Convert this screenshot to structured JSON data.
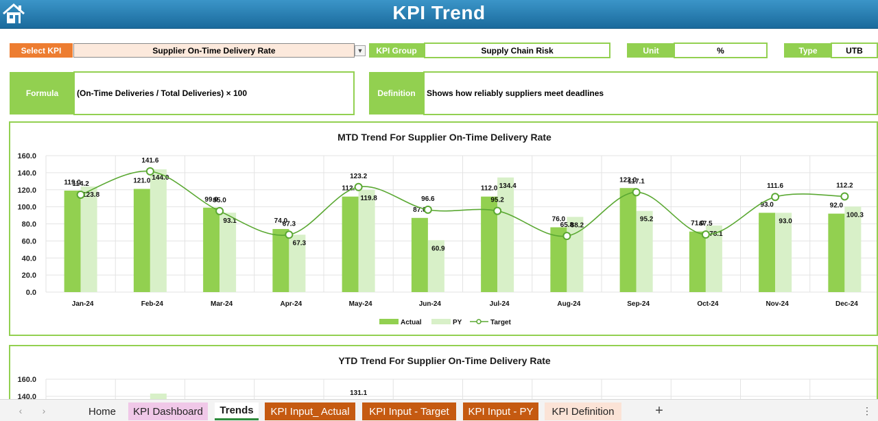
{
  "header": {
    "title": "KPI Trend",
    "home_icon": "home-icon"
  },
  "selector": {
    "select_label": "Select KPI",
    "select_value": "Supplier On-Time Delivery Rate",
    "group_label": "KPI Group",
    "group_value": "Supply Chain Risk",
    "unit_label": "Unit",
    "unit_value": "%",
    "type_label": "Type",
    "type_value": "UTB"
  },
  "info": {
    "formula_label": "Formula",
    "formula_value": "(On-Time Deliveries / Total Deliveries) × 100",
    "definition_label": "Definition",
    "definition_value": "Shows how reliably suppliers meet deadlines"
  },
  "colors": {
    "actual": "#92d050",
    "py": "#d8f0c8",
    "target": "#5aa832",
    "header": "#1f77b0",
    "accent_orange": "#ed7d31"
  },
  "chart_data": [
    {
      "type": "bar",
      "title": "MTD Trend For Supplier On-Time Delivery Rate",
      "categories": [
        "Jan-24",
        "Feb-24",
        "Mar-24",
        "Apr-24",
        "May-24",
        "Jun-24",
        "Jul-24",
        "Aug-24",
        "Sep-24",
        "Oct-24",
        "Nov-24",
        "Dec-24"
      ],
      "yticks": [
        "0.0",
        "20.0",
        "40.0",
        "60.0",
        "80.0",
        "100.0",
        "120.0",
        "140.0",
        "160.0"
      ],
      "ylim": [
        0,
        160
      ],
      "series": [
        {
          "name": "Actual",
          "kind": "bar",
          "values": [
            119.0,
            121.0,
            99.0,
            74.0,
            112.0,
            87.0,
            112.0,
            76.0,
            122.0,
            71.0,
            93.0,
            92.0
          ]
        },
        {
          "name": "PY",
          "kind": "bar",
          "values": [
            123.8,
            144.0,
            93.1,
            67.3,
            119.8,
            60.9,
            134.4,
            88.2,
            95.2,
            78.1,
            93.0,
            100.3
          ]
        },
        {
          "name": "Target",
          "kind": "line",
          "values": [
            114.2,
            141.6,
            95.0,
            67.3,
            123.2,
            96.6,
            95.2,
            65.8,
            117.1,
            67.5,
            111.6,
            112.2
          ]
        }
      ],
      "legend": [
        "Actual",
        "PY",
        "Target"
      ],
      "legend_position": "bottom",
      "grid": true
    },
    {
      "type": "bar",
      "title": "YTD Trend For Supplier On-Time Delivery Rate",
      "yticks": [
        "140.0",
        "160.0"
      ],
      "visible_labels": [
        "131.1"
      ]
    }
  ],
  "tabs": {
    "items": [
      {
        "label": "Home",
        "bg": "#f3f3f3",
        "color": "#222222"
      },
      {
        "label": "KPI Dashboard",
        "bg": "#f0c8e8",
        "color": "#222222"
      },
      {
        "label": "Trends",
        "bg": "#ffffff",
        "color": "#1a1a1a",
        "active": true
      },
      {
        "label": "KPI Input_ Actual",
        "bg": "#c55a11",
        "color": "#ffffff"
      },
      {
        "label": "KPI Input - Target",
        "bg": "#c55a11",
        "color": "#ffffff"
      },
      {
        "label": "KPI Input - PY",
        "bg": "#c55a11",
        "color": "#ffffff"
      },
      {
        "label": "KPI Definition",
        "bg": "#fbe3d6",
        "color": "#222222"
      }
    ],
    "add_icon": "plus-icon",
    "prev_icon": "chevron-left-icon",
    "next_icon": "chevron-right-icon",
    "menu_icon": "vertical-dots-icon"
  }
}
